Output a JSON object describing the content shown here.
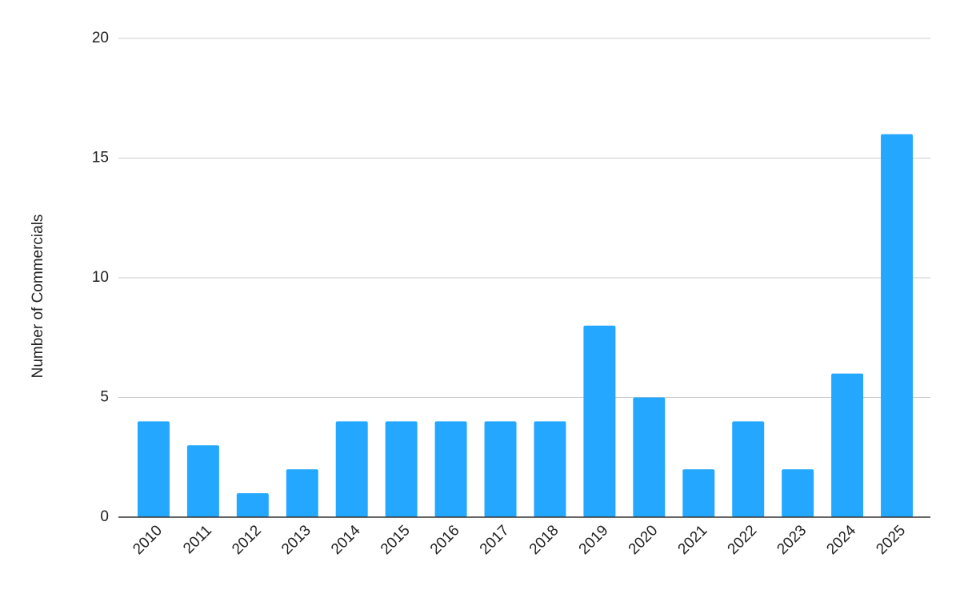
{
  "chart_data": {
    "type": "bar",
    "y_label": "Number of Commercials",
    "categories": [
      "2010",
      "2011",
      "2012",
      "2013",
      "2014",
      "2015",
      "2016",
      "2017",
      "2018",
      "2019",
      "2020",
      "2021",
      "2022",
      "2023",
      "2024",
      "2025"
    ],
    "values": [
      4,
      3,
      1,
      2,
      4,
      4,
      4,
      4,
      4,
      8,
      5,
      2,
      4,
      2,
      6,
      16
    ],
    "color": "#24a8ff",
    "ylim": [
      0,
      20
    ],
    "yticks": [
      0,
      5,
      10,
      15,
      20
    ],
    "grid": true
  }
}
